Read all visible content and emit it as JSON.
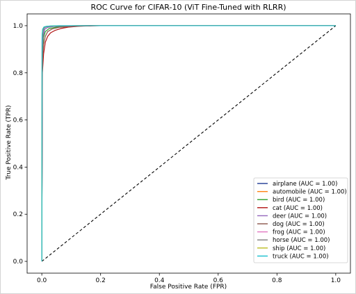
{
  "chart_data": {
    "type": "line",
    "title": "ROC Curve for CIFAR-10 (ViT Fine-Tuned with RLRR)",
    "xlabel": "False Positive Rate (FPR)",
    "ylabel": "True Positive Rate (TPR)",
    "xlim": [
      -0.05,
      1.05
    ],
    "ylim": [
      -0.05,
      1.05
    ],
    "xticks": [
      0.0,
      0.2,
      0.4,
      0.6,
      0.8,
      1.0
    ],
    "xtick_labels": [
      "0.0",
      "0.2",
      "0.4",
      "0.6",
      "0.8",
      "1.0"
    ],
    "yticks": [
      0.0,
      0.2,
      0.4,
      0.6,
      0.8,
      1.0
    ],
    "ytick_labels": [
      "0.0",
      "0.2",
      "0.4",
      "0.6",
      "0.8",
      "1.0"
    ],
    "grid": false,
    "legend_position": "lower-right",
    "diagonal": {
      "x": [
        0,
        1
      ],
      "y": [
        0,
        1
      ],
      "color": "#000000",
      "style": "dashed"
    },
    "series": [
      {
        "name": "airplane (AUC = 1.00)",
        "color": "#1f3a93",
        "x": [
          0,
          0.002,
          0.005,
          0.01,
          0.02,
          0.04,
          0.08,
          0.15,
          1.0
        ],
        "y": [
          0,
          0.9,
          0.96,
          0.985,
          0.993,
          0.997,
          0.999,
          1.0,
          1.0
        ]
      },
      {
        "name": "automobile (AUC = 1.00)",
        "color": "#ff7f0e",
        "x": [
          0,
          0.001,
          0.004,
          0.008,
          0.015,
          0.03,
          0.06,
          0.12,
          1.0
        ],
        "y": [
          0,
          0.94,
          0.98,
          0.992,
          0.996,
          0.998,
          0.999,
          1.0,
          1.0
        ]
      },
      {
        "name": "bird (AUC = 1.00)",
        "color": "#2ca02c",
        "x": [
          0,
          0.002,
          0.006,
          0.012,
          0.025,
          0.05,
          0.09,
          0.16,
          1.0
        ],
        "y": [
          0,
          0.88,
          0.95,
          0.975,
          0.988,
          0.994,
          0.998,
          1.0,
          1.0
        ]
      },
      {
        "name": "cat (AUC = 1.00)",
        "color": "#b01010",
        "x": [
          0,
          0.002,
          0.006,
          0.012,
          0.02,
          0.03,
          0.045,
          0.065,
          0.09,
          0.13,
          0.2,
          1.0
        ],
        "y": [
          0,
          0.8,
          0.88,
          0.93,
          0.955,
          0.97,
          0.98,
          0.988,
          0.994,
          0.998,
          1.0,
          1.0
        ]
      },
      {
        "name": "deer (AUC = 1.00)",
        "color": "#9467bd",
        "x": [
          0,
          0.002,
          0.005,
          0.01,
          0.02,
          0.04,
          0.08,
          0.15,
          1.0
        ],
        "y": [
          0,
          0.91,
          0.965,
          0.985,
          0.993,
          0.997,
          0.999,
          1.0,
          1.0
        ]
      },
      {
        "name": "dog (AUC = 1.00)",
        "color": "#8c564b",
        "x": [
          0,
          0.002,
          0.006,
          0.012,
          0.02,
          0.035,
          0.06,
          0.1,
          0.17,
          1.0
        ],
        "y": [
          0,
          0.85,
          0.92,
          0.955,
          0.975,
          0.986,
          0.993,
          0.997,
          1.0,
          1.0
        ]
      },
      {
        "name": "frog (AUC = 1.00)",
        "color": "#e377c2",
        "x": [
          0,
          0.001,
          0.003,
          0.008,
          0.015,
          0.03,
          0.06,
          0.12,
          1.0
        ],
        "y": [
          0,
          0.95,
          0.98,
          0.992,
          0.996,
          0.998,
          0.999,
          1.0,
          1.0
        ]
      },
      {
        "name": "horse (AUC = 1.00)",
        "color": "#7f7f7f",
        "x": [
          0,
          0.001,
          0.004,
          0.008,
          0.015,
          0.03,
          0.06,
          0.12,
          1.0
        ],
        "y": [
          0,
          0.93,
          0.975,
          0.99,
          0.995,
          0.998,
          0.999,
          1.0,
          1.0
        ]
      },
      {
        "name": "ship (AUC = 1.00)",
        "color": "#bcbd22",
        "x": [
          0,
          0.001,
          0.003,
          0.007,
          0.015,
          0.03,
          0.06,
          0.12,
          1.0
        ],
        "y": [
          0,
          0.95,
          0.985,
          0.994,
          0.997,
          0.999,
          1.0,
          1.0,
          1.0
        ]
      },
      {
        "name": "truck (AUC = 1.00)",
        "color": "#17becf",
        "x": [
          0,
          0.001,
          0.003,
          0.007,
          0.015,
          0.03,
          0.06,
          0.12,
          1.0
        ],
        "y": [
          0,
          0.96,
          0.985,
          0.994,
          0.997,
          0.999,
          1.0,
          1.0,
          1.0
        ]
      }
    ]
  }
}
